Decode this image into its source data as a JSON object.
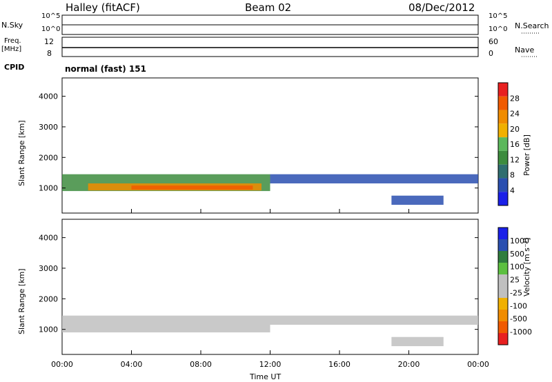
{
  "header": {
    "station": "Halley (fitACF)",
    "beam": "Beam 02",
    "date": "08/Dec/2012"
  },
  "top_panels": {
    "nsky_label": "N.Sky",
    "nsearch_label": "N.Search",
    "nsky_ticks": [
      "10^5",
      "10^0"
    ],
    "nsearch_ticks": [
      "10^5",
      "10^0"
    ],
    "freq_label_1": "Freq.",
    "freq_label_2": "[MHz]",
    "freq_ticks": [
      "12",
      "8"
    ],
    "nave_label": "Nave",
    "nave_ticks": [
      "60",
      "0"
    ],
    "cpid_label": "CPID",
    "cpid_value": "normal (fast) 151"
  },
  "colors": {
    "power": [
      "#1a20e8",
      "#2a4fb0",
      "#2f6e70",
      "#3d8c3e",
      "#5cb85c",
      "#f0b000",
      "#f08c00",
      "#f05a00",
      "#e82020"
    ],
    "velocity": [
      "#1a20e8",
      "#2a4fb0",
      "#2f7d3e",
      "#5cc040",
      "#c0c0c0",
      "#c0c0c0",
      "#f0b000",
      "#f08c00",
      "#f05a00",
      "#e82020"
    ]
  },
  "chart_data": [
    {
      "type": "heatmap",
      "name": "power",
      "ylabel": "Slant Range [km]",
      "ylim": [
        180,
        4600
      ],
      "yticks": [
        "1000",
        "2000",
        "3000",
        "4000"
      ],
      "colorbar_label": "Power [dB]",
      "colorbar_ticks": [
        "4",
        "8",
        "12",
        "16",
        "20",
        "24",
        "28"
      ],
      "bands": [
        {
          "t0": 0.0,
          "t1": 12.0,
          "r0": 900,
          "r1": 1450,
          "level": 3
        },
        {
          "t0": 1.5,
          "t1": 11.5,
          "r0": 920,
          "r1": 1150,
          "level": 6
        },
        {
          "t0": 4.0,
          "t1": 11.0,
          "r0": 950,
          "r1": 1080,
          "level": 7
        },
        {
          "t0": 12.0,
          "t1": 24.0,
          "r0": 1150,
          "r1": 1450,
          "level": 1
        },
        {
          "t0": 19.0,
          "t1": 22.0,
          "r0": 450,
          "r1": 750,
          "level": 1
        }
      ]
    },
    {
      "type": "heatmap",
      "name": "velocity",
      "xlabel": "Time UT",
      "ylabel": "Slant Range [km]",
      "ylim": [
        180,
        4600
      ],
      "yticks": [
        "1000",
        "2000",
        "3000",
        "4000"
      ],
      "xticks": [
        "00:00",
        "04:00",
        "08:00",
        "12:00",
        "16:00",
        "20:00",
        "00:00"
      ],
      "colorbar_label": "Velocity [m s⁻¹]",
      "colorbar_ticks": [
        "1000",
        "500",
        "100",
        "25",
        "-25",
        "-100",
        "-500",
        "-1000"
      ],
      "bands": [
        {
          "t0": 0.0,
          "t1": 12.0,
          "r0": 900,
          "r1": 1450,
          "level": 4
        },
        {
          "t0": 12.0,
          "t1": 24.0,
          "r0": 1150,
          "r1": 1450,
          "level": 4
        },
        {
          "t0": 19.0,
          "t1": 22.0,
          "r0": 450,
          "r1": 750,
          "level": 4
        }
      ]
    }
  ]
}
